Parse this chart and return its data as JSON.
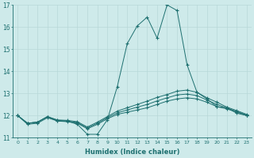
{
  "xlabel": "Humidex (Indice chaleur)",
  "background_color": "#ceeaea",
  "grid_color": "#b8d8d8",
  "line_color": "#1e7070",
  "x_values": [
    0,
    1,
    2,
    3,
    4,
    5,
    6,
    7,
    8,
    9,
    10,
    11,
    12,
    13,
    14,
    15,
    16,
    17,
    18,
    19,
    20,
    21,
    22,
    23
  ],
  "series": [
    [
      12.0,
      11.6,
      11.65,
      11.9,
      11.75,
      11.75,
      11.6,
      11.15,
      11.15,
      11.8,
      13.3,
      15.25,
      16.05,
      16.45,
      15.5,
      17.0,
      16.75,
      14.3,
      13.05,
      12.75,
      12.4,
      12.35,
      12.1,
      12.0
    ],
    [
      12.0,
      11.65,
      11.7,
      11.95,
      11.75,
      11.72,
      11.65,
      11.4,
      11.6,
      11.85,
      12.05,
      12.15,
      12.25,
      12.35,
      12.5,
      12.65,
      12.75,
      12.8,
      12.75,
      12.6,
      12.4,
      12.3,
      12.15,
      12.0
    ],
    [
      12.0,
      11.65,
      11.7,
      11.95,
      11.8,
      11.78,
      11.72,
      11.48,
      11.7,
      11.95,
      12.2,
      12.35,
      12.5,
      12.65,
      12.82,
      12.95,
      13.1,
      13.15,
      13.05,
      12.8,
      12.6,
      12.38,
      12.22,
      12.05
    ],
    [
      12.0,
      11.65,
      11.7,
      11.95,
      11.78,
      11.75,
      11.68,
      11.44,
      11.65,
      11.9,
      12.12,
      12.25,
      12.38,
      12.5,
      12.66,
      12.8,
      12.93,
      12.97,
      12.9,
      12.7,
      12.5,
      12.34,
      12.18,
      12.02
    ]
  ],
  "ylim": [
    11.0,
    17.0
  ],
  "yticks": [
    11,
    12,
    13,
    14,
    15,
    16,
    17
  ],
  "xlim": [
    -0.5,
    23.5
  ],
  "figsize": [
    3.2,
    2.0
  ],
  "dpi": 100
}
